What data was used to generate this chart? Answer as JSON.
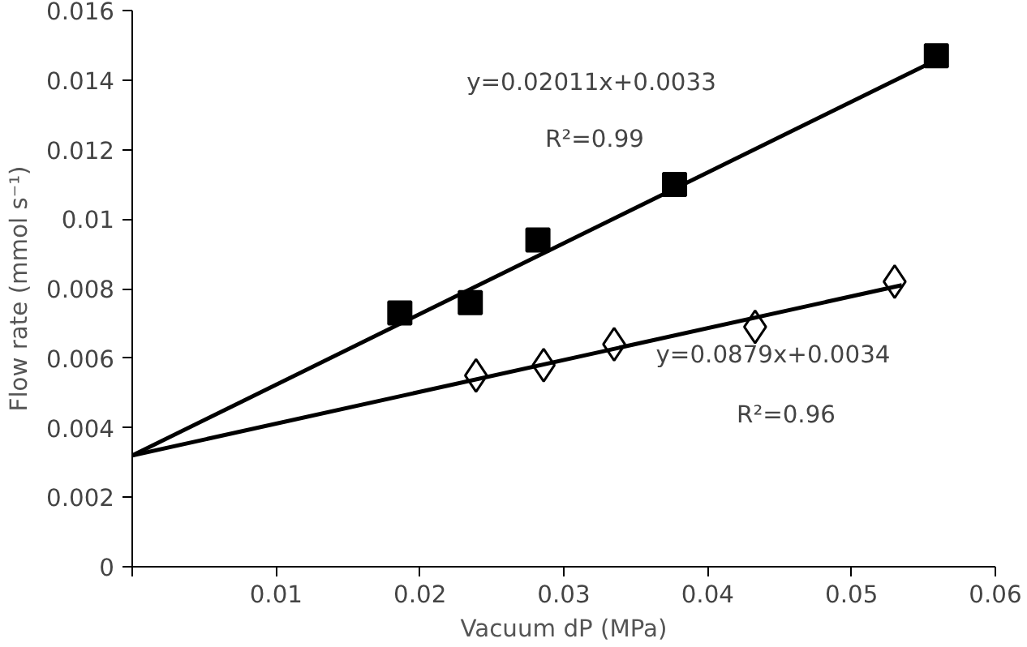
{
  "chart_data": {
    "type": "scatter",
    "xlabel": "Vacuum dP (MPa)",
    "ylabel": "Flow rate (mmol s⁻¹)",
    "xlim": [
      0,
      0.06
    ],
    "ylim": [
      0,
      0.016
    ],
    "xticks": [
      {
        "value": 0,
        "label": null
      },
      0.01,
      0.02,
      0.03,
      0.04,
      0.05,
      0.06
    ],
    "yticks": [
      0,
      0.002,
      0.004,
      0.006,
      0.008,
      0.01,
      0.012,
      0.014,
      0.016
    ],
    "grid": false,
    "series": [
      {
        "marker": "square",
        "color": "#000000",
        "x": [
          0.0186,
          0.0235,
          0.0282,
          0.0377,
          0.0559
        ],
        "values": [
          0.0073,
          0.0076,
          0.0094,
          0.011,
          0.0147
        ]
      },
      {
        "marker": "diamond",
        "color": "#000000",
        "x": [
          0.0239,
          0.0286,
          0.0335,
          0.0433,
          0.053
        ],
        "values": [
          0.0055,
          0.0058,
          0.0064,
          0.0069,
          0.0082
        ]
      },
      {
        "type": "line",
        "color": "#000000",
        "x": [
          0,
          0.0565
        ],
        "values": [
          0.0032,
          0.0147
        ]
      },
      {
        "type": "line",
        "color": "#000000",
        "x": [
          0,
          0.0535
        ],
        "values": [
          0.0032,
          0.0081
        ]
      }
    ],
    "annotations": [
      "y=0.02011x+0.0033",
      "R²=0.99",
      "y=0.0879x+0.0034",
      "R²=0.96"
    ]
  }
}
